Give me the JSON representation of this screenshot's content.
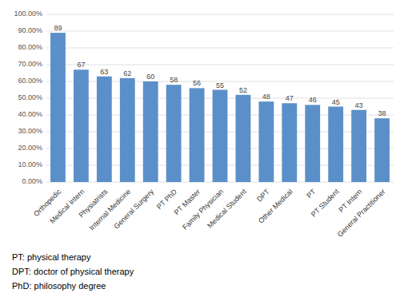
{
  "chart_data": {
    "type": "bar",
    "categories": [
      "Orthopedic",
      "Medical Intern",
      "Physiatrists",
      "Internal Medicine",
      "General Surgery",
      "PT PhD",
      "PT Master",
      "Family Physician",
      "Medical Student",
      "DPT",
      "Other Medical",
      "PT",
      "PT Student",
      "PT Intern",
      "General Practitioner"
    ],
    "values": [
      89,
      67,
      63,
      62,
      60,
      58,
      56,
      55,
      52,
      48,
      47,
      46,
      45,
      43,
      38
    ],
    "color": "#5b8fc9",
    "ylim": [
      0,
      100
    ],
    "yticks": [
      {
        "value": 0,
        "label": "0.00%"
      },
      {
        "value": 10,
        "label": "10.00%"
      },
      {
        "value": 20,
        "label": "20.00%"
      },
      {
        "value": 30,
        "label": "30.00%"
      },
      {
        "value": 40,
        "label": "40.00%"
      },
      {
        "value": 50,
        "label": "50.00%"
      },
      {
        "value": 60,
        "label": "60.00%"
      },
      {
        "value": 70,
        "label": "70.00%"
      },
      {
        "value": 80,
        "label": "80.00%"
      },
      {
        "value": 90,
        "label": "90.00%"
      },
      {
        "value": 100,
        "label": "100.00%"
      }
    ],
    "grid": true,
    "data_labels": true,
    "annotations": [
      "PT: physical therapy",
      "DPT: doctor of physical therapy",
      "PhD: philosophy degree"
    ]
  }
}
